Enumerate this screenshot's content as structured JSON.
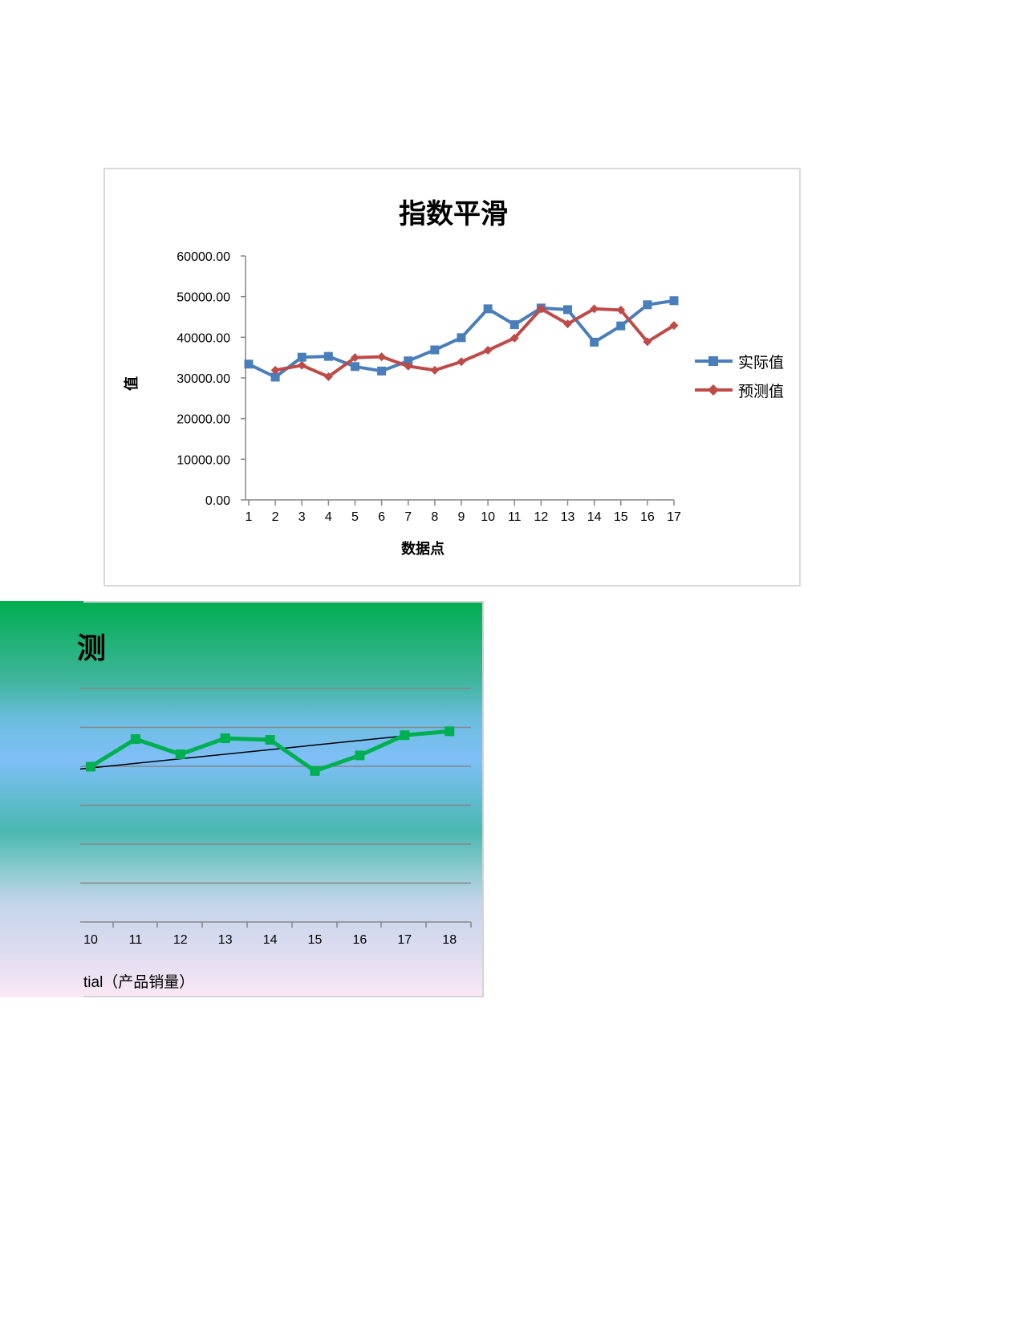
{
  "chart_data": [
    {
      "type": "line",
      "title": "指数平滑",
      "xlabel": "数据点",
      "ylabel": "值",
      "x": [
        1,
        2,
        3,
        4,
        5,
        6,
        7,
        8,
        9,
        10,
        11,
        12,
        13,
        14,
        15,
        16,
        17
      ],
      "ylim": [
        0,
        60000
      ],
      "yticks": [
        "0.00",
        "10000.00",
        "20000.00",
        "30000.00",
        "40000.00",
        "50000.00",
        "60000.00"
      ],
      "grid": false,
      "legend_position": "right",
      "series": [
        {
          "name": "实际值",
          "color": "#4a7ebb",
          "marker": "square",
          "values": [
            33400,
            30200,
            35100,
            35300,
            32800,
            31700,
            34200,
            36900,
            39900,
            47000,
            43100,
            47200,
            46800,
            38800,
            42800,
            48000,
            49000
          ]
        },
        {
          "name": "预测值",
          "color": "#be4b48",
          "marker": "diamond",
          "values": [
            null,
            31900,
            33100,
            30300,
            35000,
            35200,
            32900,
            31900,
            34000,
            36800,
            39800,
            47000,
            43300,
            47000,
            46700,
            38900,
            42900
          ]
        }
      ]
    },
    {
      "type": "line",
      "title": "测",
      "title_partial": true,
      "xlabel": "",
      "caption": "tial（产品销量）",
      "x": [
        10,
        11,
        12,
        13,
        14,
        15,
        16,
        17,
        18
      ],
      "ylim": [
        0,
        60000
      ],
      "grid": true,
      "series": [
        {
          "name": "产品销量",
          "color": "#00b050",
          "marker": "square",
          "values": [
            39900,
            47000,
            43100,
            47200,
            46800,
            38800,
            42800,
            48000,
            49000
          ]
        },
        {
          "name": "Exponential trendline",
          "color": "#000000",
          "type": "trendline",
          "values_start_end": [
            39300,
            49000
          ]
        }
      ]
    }
  ],
  "chart1": {
    "title": "指数平滑",
    "ylabel": "值",
    "xlabel": "数据点",
    "yticks": [
      "0.00",
      "10000.00",
      "20000.00",
      "30000.00",
      "40000.00",
      "50000.00",
      "60000.00"
    ],
    "xticks": [
      "1",
      "2",
      "3",
      "4",
      "5",
      "6",
      "7",
      "8",
      "9",
      "10",
      "11",
      "12",
      "13",
      "14",
      "15",
      "16",
      "17"
    ],
    "legend": [
      "实际值",
      "预测值"
    ]
  },
  "chart2": {
    "title": "测",
    "xticks": [
      "10",
      "11",
      "12",
      "13",
      "14",
      "15",
      "16",
      "17",
      "18"
    ],
    "caption": "tial（产品销量）"
  }
}
